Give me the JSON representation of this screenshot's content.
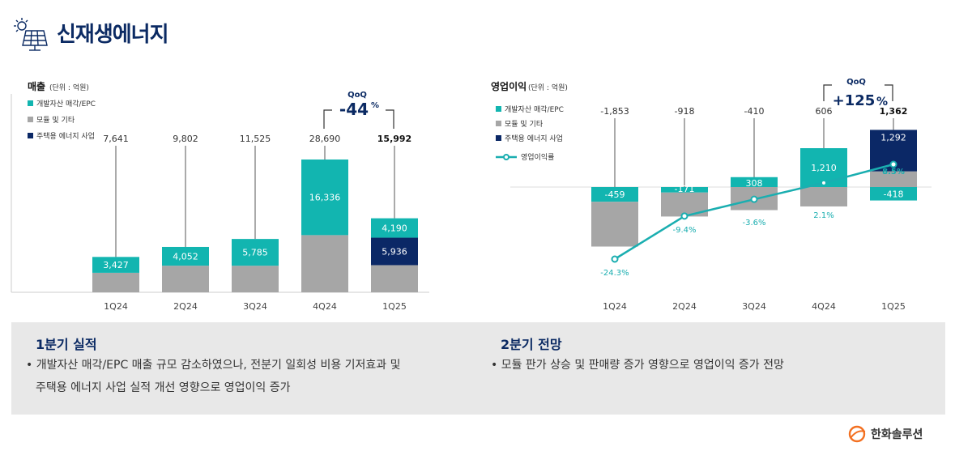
{
  "page": {
    "title": "신재생에너지",
    "logo_text": "한화솔루션"
  },
  "colors": {
    "teal": "#12b5b0",
    "gray": "#a6a6a6",
    "navy": "#0b2866",
    "line": "#1aaeb0",
    "title": "#0b2a63"
  },
  "chart_data": [
    {
      "type": "bar",
      "title": "매출",
      "unit": "(단위 : 억원)",
      "categories": [
        "1Q24",
        "2Q24",
        "3Q24",
        "4Q24",
        "1Q25"
      ],
      "series": [
        {
          "name": "개발자산 매각/EPC",
          "values": [
            3427,
            4052,
            5785,
            16336,
            4190
          ]
        },
        {
          "name": "모듈 및 기타",
          "values": [
            4214,
            5750,
            5740,
            12354,
            5866
          ]
        },
        {
          "name": "주택용 에너지 사업",
          "values": [
            0,
            0,
            0,
            0,
            5936
          ]
        }
      ],
      "totals": [
        "7,641",
        "9,802",
        "11,525",
        "28,690",
        "15,992"
      ],
      "teal_labels": [
        "3,427",
        "4,052",
        "5,785",
        "16,336",
        "4,190"
      ],
      "navy_labels": [
        "",
        "",
        "",
        "",
        "5,936"
      ],
      "qoq": {
        "label": "QoQ",
        "value": "-44",
        "unit": "%"
      }
    },
    {
      "type": "bar",
      "title": "영업이익",
      "unit": "(단위 : 억원)",
      "categories": [
        "1Q24",
        "2Q24",
        "3Q24",
        "4Q24",
        "1Q25"
      ],
      "series": [
        {
          "name": "개발자산 매각/EPC",
          "values": [
            -459,
            -171,
            308,
            1210,
            -418
          ]
        },
        {
          "name": "모듈 및 기타",
          "values": [
            -1394,
            -747,
            -718,
            -604,
            488
          ]
        },
        {
          "name": "주택용 에너지 사업",
          "values": [
            0,
            0,
            0,
            0,
            1292
          ]
        },
        {
          "name": "영업이익률",
          "values": [
            -24.3,
            -9.4,
            -3.6,
            2.1,
            8.5
          ],
          "unit": "%"
        }
      ],
      "totals": [
        "-1,853",
        "-918",
        "-410",
        "606",
        "1,362"
      ],
      "teal_labels": [
        "-459",
        "-171",
        "308",
        "1,210",
        "-418"
      ],
      "navy_labels": [
        "",
        "",
        "",
        "",
        "1,292"
      ],
      "margin_labels": [
        "-24.3%",
        "-9.4%",
        "-3.6%",
        "2.1%",
        "8.5%"
      ],
      "qoq": {
        "label": "QoQ",
        "value": "+125",
        "unit": "%"
      }
    }
  ],
  "summary": {
    "left": {
      "heading": "1분기 실적",
      "bullet1": "• 개발자산 매각/EPC 매출 규모 감소하였으나, 전분기 일회성 비용 기저효과 및",
      "bullet2": "주택용 에너지 사업 실적 개선 영향으로 영업이익 증가"
    },
    "right": {
      "heading": "2분기 전망",
      "bullet1": "• 모듈 판가 상승 및 판매량 증가 영향으로 영업이익 증가 전망"
    }
  }
}
